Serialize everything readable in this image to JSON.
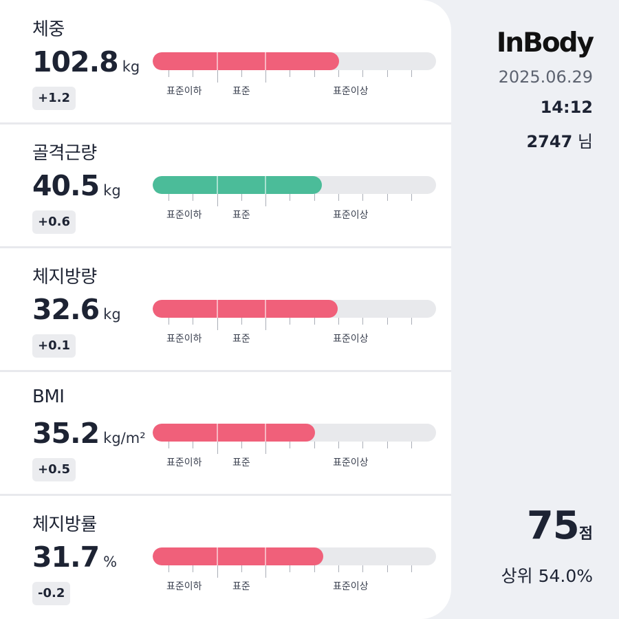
{
  "brand": {
    "logo_text": "InBody"
  },
  "measurement": {
    "date": "2025.06.29",
    "time": "14:12",
    "user_count": "2747",
    "user_suffix": "님"
  },
  "score": {
    "value": "75",
    "unit": "점",
    "rank_label": "상위 54.0%"
  },
  "zones": {
    "under": "표준이하",
    "standard": "표준",
    "over": "표준이상"
  },
  "colors": {
    "over": "#f0607a",
    "normal": "#4bbc99",
    "track": "#e8e9ec"
  },
  "metrics": [
    {
      "label": "체중",
      "value": "102.8",
      "unit": "kg",
      "delta": "+1.2",
      "level": 0.657,
      "status": "over"
    },
    {
      "label": "골격근량",
      "value": "40.5",
      "unit": "kg",
      "delta": "+0.6",
      "level": 0.596,
      "status": "normal"
    },
    {
      "label": "체지방량",
      "value": "32.6",
      "unit": "kg",
      "delta": "+0.1",
      "level": 0.654,
      "status": "over"
    },
    {
      "label": "BMI",
      "value": "35.2",
      "unit": "kg/m²",
      "delta": "+0.5",
      "level": 0.573,
      "status": "over"
    },
    {
      "label": "체지방률",
      "value": "31.7",
      "unit": "%",
      "delta": "-0.2",
      "level": 0.601,
      "status": "over"
    }
  ]
}
